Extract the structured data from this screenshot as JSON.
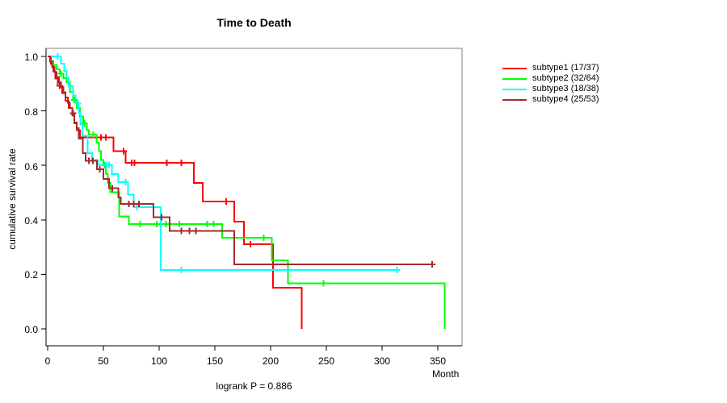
{
  "title": "Time to Death",
  "y_axis": {
    "label": "cumulative survival rate",
    "ticks": [
      "1.0",
      "0.8",
      "0.6",
      "0.4",
      "0.2",
      "0.0"
    ]
  },
  "x_axis": {
    "label": "Month",
    "ticks": [
      "0",
      "50",
      "100",
      "150",
      "200",
      "250",
      "300",
      "350"
    ]
  },
  "footer": {
    "text": "logrank P = 0.886"
  },
  "chart_data": {
    "type": "line",
    "subtype": "kaplan-meier-step",
    "title": "Time to Death",
    "xlabel": "Month",
    "ylabel": "cumulative survival rate",
    "annotation": "logrank P = 0.886",
    "xlim": [
      0,
      372
    ],
    "ylim": [
      0,
      1.0
    ],
    "x_ticks": [
      0,
      50,
      100,
      150,
      200,
      250,
      300,
      350
    ],
    "y_ticks": [
      1.0,
      0.8,
      0.6,
      0.4,
      0.2,
      0.0
    ],
    "grid": false,
    "legend_position": "right-outside",
    "series": [
      {
        "name": "subtype1",
        "legend": "subtype1 (17/37)",
        "color": "#FF0000",
        "end": 227.8,
        "steps": [
          [
            0,
            1.0
          ],
          [
            3,
            0.973
          ],
          [
            5,
            0.946
          ],
          [
            7,
            0.919
          ],
          [
            9,
            0.892
          ],
          [
            13,
            0.865
          ],
          [
            16,
            0.838
          ],
          [
            19,
            0.811
          ],
          [
            22,
            0.784
          ],
          [
            24,
            0.757
          ],
          [
            26,
            0.73
          ],
          [
            29,
            0.703
          ],
          [
            59,
            0.652
          ],
          [
            70,
            0.61
          ],
          [
            131,
            0.536
          ],
          [
            139,
            0.467
          ],
          [
            167.4,
            0.393
          ],
          [
            176,
            0.31
          ],
          [
            202,
            0.151
          ],
          [
            227.8,
            0.0
          ]
        ],
        "censors": [
          [
            11,
            0.892
          ],
          [
            44,
            0.703
          ],
          [
            48,
            0.703
          ],
          [
            52,
            0.703
          ],
          [
            68,
            0.652
          ],
          [
            75.5,
            0.61
          ],
          [
            78,
            0.61
          ],
          [
            107,
            0.61
          ],
          [
            120,
            0.61
          ],
          [
            160,
            0.467
          ],
          [
            182,
            0.31
          ]
        ]
      },
      {
        "name": "subtype2",
        "legend": "subtype2 (32/64)",
        "color": "#00FF00",
        "end": 356,
        "steps": [
          [
            0,
            1.0
          ],
          [
            2,
            0.984
          ],
          [
            5,
            0.969
          ],
          [
            8,
            0.953
          ],
          [
            11,
            0.937
          ],
          [
            14,
            0.92
          ],
          [
            17,
            0.905
          ],
          [
            20,
            0.87
          ],
          [
            23,
            0.84
          ],
          [
            26,
            0.81
          ],
          [
            29,
            0.78
          ],
          [
            32,
            0.755
          ],
          [
            35,
            0.73
          ],
          [
            37,
            0.713
          ],
          [
            44,
            0.684
          ],
          [
            46,
            0.652
          ],
          [
            48,
            0.62
          ],
          [
            50,
            0.6
          ],
          [
            52,
            0.57
          ],
          [
            54,
            0.535
          ],
          [
            56,
            0.502
          ],
          [
            64,
            0.413
          ],
          [
            73,
            0.384
          ],
          [
            156.5,
            0.334
          ],
          [
            201.2,
            0.251
          ],
          [
            215.7,
            0.167
          ],
          [
            356,
            0.0
          ]
        ],
        "censors": [
          [
            12,
            0.937
          ],
          [
            24,
            0.84
          ],
          [
            33,
            0.755
          ],
          [
            41,
            0.713
          ],
          [
            51,
            0.6
          ],
          [
            83,
            0.384
          ],
          [
            98,
            0.384
          ],
          [
            106,
            0.384
          ],
          [
            118,
            0.384
          ],
          [
            143,
            0.384
          ],
          [
            149,
            0.384
          ],
          [
            194,
            0.334
          ],
          [
            247.5,
            0.167
          ]
        ]
      },
      {
        "name": "subtype3",
        "legend": "subtype3 (18/38)",
        "color": "#00FFFF",
        "end": 313.5,
        "steps": [
          [
            0,
            1.0
          ],
          [
            12,
            0.973
          ],
          [
            15,
            0.947
          ],
          [
            17,
            0.921
          ],
          [
            19,
            0.891
          ],
          [
            23,
            0.857
          ],
          [
            25,
            0.827
          ],
          [
            28,
            0.793
          ],
          [
            29.5,
            0.75
          ],
          [
            31,
            0.709
          ],
          [
            36,
            0.645
          ],
          [
            40,
            0.62
          ],
          [
            45,
            0.602
          ],
          [
            57.5,
            0.568
          ],
          [
            63.5,
            0.538
          ],
          [
            72,
            0.492
          ],
          [
            77,
            0.447
          ],
          [
            101.5,
            0.216
          ]
        ],
        "censors": [
          [
            9,
            1.0
          ],
          [
            27,
            0.827
          ],
          [
            53,
            0.602
          ],
          [
            55,
            0.602
          ],
          [
            70,
            0.538
          ],
          [
            80,
            0.447
          ],
          [
            120,
            0.216
          ],
          [
            313.5,
            0.216
          ]
        ]
      },
      {
        "name": "subtype4",
        "legend": "subtype4 (25/53)",
        "color": "#A52A2A",
        "end": 345,
        "steps": [
          [
            0,
            1.0
          ],
          [
            2,
            0.981
          ],
          [
            4,
            0.962
          ],
          [
            6,
            0.943
          ],
          [
            8,
            0.925
          ],
          [
            10,
            0.906
          ],
          [
            12,
            0.887
          ],
          [
            14,
            0.868
          ],
          [
            16,
            0.849
          ],
          [
            18,
            0.83
          ],
          [
            20,
            0.811
          ],
          [
            22,
            0.792
          ],
          [
            24,
            0.755
          ],
          [
            26,
            0.736
          ],
          [
            28,
            0.698
          ],
          [
            31.5,
            0.645
          ],
          [
            34,
            0.617
          ],
          [
            44.2,
            0.586
          ],
          [
            50,
            0.551
          ],
          [
            55,
            0.517
          ],
          [
            63.4,
            0.482
          ],
          [
            65.5,
            0.458
          ],
          [
            95,
            0.41
          ],
          [
            109.4,
            0.36
          ],
          [
            167.5,
            0.237
          ]
        ],
        "censors": [
          [
            23,
            0.792
          ],
          [
            37,
            0.617
          ],
          [
            40.6,
            0.617
          ],
          [
            46.6,
            0.586
          ],
          [
            58,
            0.517
          ],
          [
            73,
            0.458
          ],
          [
            77,
            0.458
          ],
          [
            82,
            0.458
          ],
          [
            102,
            0.41
          ],
          [
            120,
            0.36
          ],
          [
            127,
            0.36
          ],
          [
            133,
            0.36
          ],
          [
            345,
            0.237
          ]
        ]
      }
    ],
    "colors": {
      "subtype1": "#FF0000",
      "subtype2": "#00FF00",
      "subtype3": "#00FFFF",
      "subtype4": "#A52A2A",
      "box": "#808080",
      "axis": "#000000"
    }
  }
}
